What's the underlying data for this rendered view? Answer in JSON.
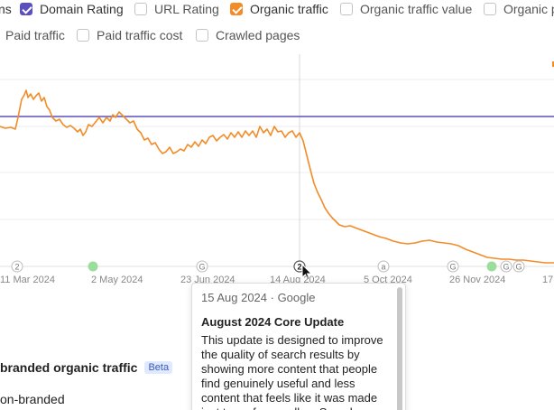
{
  "legend": {
    "row1": [
      {
        "label": "ns",
        "checked": null
      },
      {
        "label": "Domain Rating",
        "checked": true,
        "color": "#5b4fbd"
      },
      {
        "label": "URL Rating",
        "checked": false
      },
      {
        "label": "Organic traffic",
        "checked": true,
        "color": "#f28c28"
      },
      {
        "label": "Organic traffic value",
        "checked": false
      },
      {
        "label": "Organic p",
        "checked": false
      }
    ],
    "row2": [
      {
        "label": "Paid traffic",
        "checked": false
      },
      {
        "label": "Paid traffic cost",
        "checked": false
      },
      {
        "label": "Crawled pages",
        "checked": false
      }
    ]
  },
  "chart": {
    "x_ticks": [
      "11 Mar 2024",
      "2 May 2024",
      "23 Jun 2024",
      "14 Aug 2024",
      "5 Oct 2024",
      "26 Nov 2024",
      "17"
    ],
    "markers": [
      {
        "kind": "number",
        "text": "2"
      },
      {
        "kind": "green",
        "text": ""
      },
      {
        "kind": "google",
        "text": "G"
      },
      {
        "kind": "number-active",
        "text": "2"
      },
      {
        "kind": "letter",
        "text": "a"
      },
      {
        "kind": "google",
        "text": "G"
      },
      {
        "kind": "green",
        "text": ""
      },
      {
        "kind": "google",
        "text": "G"
      },
      {
        "kind": "google",
        "text": "G"
      }
    ],
    "colors": {
      "domain_rating": "#5b4fbd",
      "organic_traffic": "#f28c28"
    }
  },
  "tooltip": {
    "date_source": "15 Aug 2024 · Google",
    "title": "August 2024 Core Update",
    "description": "This update is designed to improve the quality of search results by showing more content that people find genuinely useful and less content that feels like it was made just to perform well on Search."
  },
  "section": {
    "title": "branded organic traffic",
    "badge": "Beta",
    "item": "on-branded"
  }
}
